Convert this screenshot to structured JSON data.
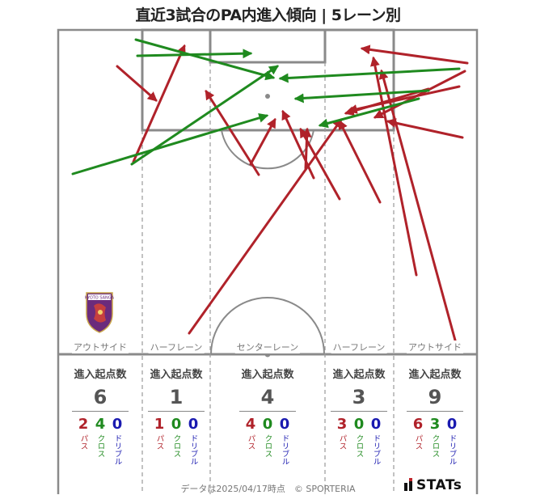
{
  "title": "直近3試合のPA内進入傾向 | 5レーン別",
  "lanes": [
    {
      "label": "アウトサイド",
      "stat_header": "進入起点数",
      "total": "6",
      "pass": "2",
      "cross": "4",
      "dribble": "0"
    },
    {
      "label": "ハーフレーン",
      "stat_header": "進入起点数",
      "total": "1",
      "pass": "1",
      "cross": "0",
      "dribble": "0"
    },
    {
      "label": "センターレーン",
      "stat_header": "進入起点数",
      "total": "4",
      "pass": "4",
      "cross": "0",
      "dribble": "0"
    },
    {
      "label": "ハーフレーン",
      "stat_header": "進入起点数",
      "total": "3",
      "pass": "3",
      "cross": "0",
      "dribble": "0"
    },
    {
      "label": "アウトサイド",
      "stat_header": "進入起点数",
      "total": "9",
      "pass": "6",
      "cross": "3",
      "dribble": "0"
    }
  ],
  "breakdown_labels": {
    "pass": "パス",
    "cross": "クロス",
    "dribble": "ドリブル"
  },
  "footer": "データは2025/04/17時点　© SPORTERIA",
  "brand": "STATs",
  "crest_text": "KYOTO SANGA",
  "colors": {
    "pass": "#b0222a",
    "cross": "#1f8a1f",
    "dribble": "#1a1ab0",
    "pitch_line": "#8a8a8a"
  },
  "chart_data": {
    "type": "arrows",
    "arrows": [
      {
        "type": "pass",
        "from": [
          145,
          82
        ],
        "to": [
          193,
          124
        ]
      },
      {
        "type": "pass",
        "from": [
          165,
          200
        ],
        "to": [
          228,
          57
        ]
      },
      {
        "type": "pass",
        "from": [
          234,
          412
        ],
        "to": [
          422,
          148
        ]
      },
      {
        "type": "pass",
        "from": [
          320,
          216
        ],
        "to": [
          255,
          113
        ]
      },
      {
        "type": "pass",
        "from": [
          310,
          203
        ],
        "to": [
          340,
          148
        ]
      },
      {
        "type": "pass",
        "from": [
          388,
          220
        ],
        "to": [
          350,
          138
        ]
      },
      {
        "type": "pass",
        "from": [
          378,
          208
        ],
        "to": [
          380,
          160
        ]
      },
      {
        "type": "pass",
        "from": [
          420,
          246
        ],
        "to": [
          372,
          160
        ]
      },
      {
        "type": "pass",
        "from": [
          578,
          78
        ],
        "to": [
          448,
          60
        ]
      },
      {
        "type": "pass",
        "from": [
          575,
          88
        ],
        "to": [
          464,
          145
        ]
      },
      {
        "type": "pass",
        "from": [
          568,
          107
        ],
        "to": [
          432,
          137
        ]
      },
      {
        "type": "pass",
        "from": [
          515,
          340
        ],
        "to": [
          462,
          72
        ]
      },
      {
        "type": "pass",
        "from": [
          572,
          170
        ],
        "to": [
          480,
          150
        ]
      },
      {
        "type": "pass",
        "from": [
          565,
          428
        ],
        "to": [
          472,
          88
        ]
      },
      {
        "type": "pass",
        "from": [
          470,
          250
        ],
        "to": [
          420,
          150
        ]
      },
      {
        "type": "pass",
        "from": [
          530,
          110
        ],
        "to": [
          428,
          140
        ]
      },
      {
        "type": "cross",
        "from": [
          168,
          49
        ],
        "to": [
          338,
          96
        ]
      },
      {
        "type": "cross",
        "from": [
          170,
          69
        ],
        "to": [
          310,
          66
        ]
      },
      {
        "type": "cross",
        "from": [
          163,
          203
        ],
        "to": [
          343,
          82
        ]
      },
      {
        "type": "cross",
        "from": [
          90,
          215
        ],
        "to": [
          330,
          143
        ]
      },
      {
        "type": "cross",
        "from": [
          568,
          85
        ],
        "to": [
          347,
          97
        ]
      },
      {
        "type": "cross",
        "from": [
          530,
          112
        ],
        "to": [
          366,
          122
        ]
      },
      {
        "type": "cross",
        "from": [
          518,
          122
        ],
        "to": [
          396,
          155
        ]
      }
    ]
  }
}
